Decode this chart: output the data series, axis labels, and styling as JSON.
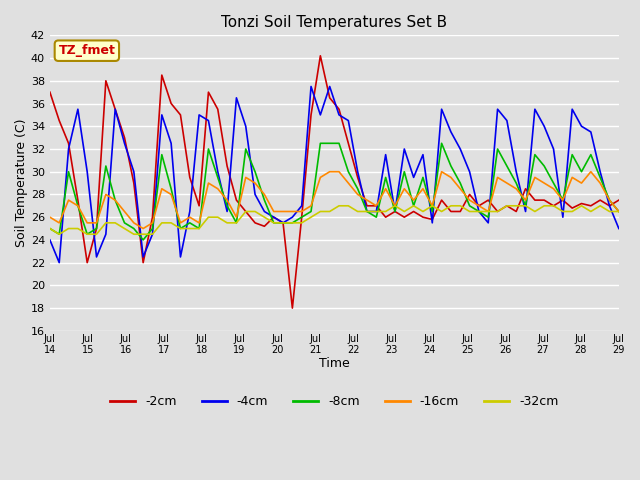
{
  "title": "Tonzi Soil Temperatures Set B",
  "xlabel": "Time",
  "ylabel": "Soil Temperature (C)",
  "annotation": "TZ_fmet",
  "ylim": [
    16,
    42
  ],
  "yticks": [
    16,
    18,
    20,
    22,
    24,
    26,
    28,
    30,
    32,
    34,
    36,
    38,
    40,
    42
  ],
  "xtick_labels": [
    "Jul 14",
    "Jul 15",
    "Jul 16",
    "Jul 17",
    "Jul 18",
    "Jul 19",
    "Jul 20",
    "Jul 21",
    "Jul 22",
    "Jul 23",
    "Jul 24",
    "Jul 25",
    "Jul 26",
    "Jul 27",
    "Jul 28",
    "Jul 29"
  ],
  "background_color": "#e0e0e0",
  "plot_bg_color": "#e0e0e0",
  "grid_color": "#ffffff",
  "series_colors": [
    "#cc0000",
    "#0000ee",
    "#00bb00",
    "#ff8800",
    "#cccc00"
  ],
  "series_labels": [
    "-2cm",
    "-4cm",
    "-8cm",
    "-16cm",
    "-32cm"
  ],
  "series_keys": [
    "2cm",
    "4cm",
    "8cm",
    "16cm",
    "32cm"
  ],
  "data": {
    "2cm": [
      37.0,
      34.5,
      32.5,
      27.5,
      22.0,
      25.0,
      38.0,
      35.5,
      33.0,
      29.0,
      22.0,
      26.0,
      38.5,
      36.0,
      35.0,
      29.5,
      27.0,
      37.0,
      35.5,
      30.5,
      27.5,
      26.5,
      25.5,
      25.2,
      26.0,
      25.5,
      18.0,
      26.0,
      35.0,
      40.2,
      36.5,
      35.5,
      32.5,
      29.5,
      27.0,
      27.0,
      26.0,
      26.5,
      26.0,
      26.5,
      26.0,
      25.8,
      27.5,
      26.5,
      26.5,
      28.0,
      27.0,
      27.5,
      26.5,
      27.0,
      26.5,
      28.5,
      27.5,
      27.5,
      27.0,
      27.5,
      26.8,
      27.2,
      27.0,
      27.5,
      27.0,
      27.5
    ],
    "4cm": [
      24.0,
      22.0,
      32.0,
      35.5,
      30.0,
      22.5,
      24.5,
      35.5,
      32.5,
      30.0,
      22.5,
      24.5,
      35.0,
      32.5,
      22.5,
      26.5,
      35.0,
      34.5,
      30.0,
      26.5,
      36.5,
      34.0,
      28.0,
      26.5,
      26.0,
      25.5,
      26.0,
      27.0,
      37.5,
      35.0,
      37.5,
      35.0,
      34.5,
      30.0,
      26.5,
      26.5,
      31.5,
      26.5,
      32.0,
      29.5,
      31.5,
      25.5,
      35.5,
      33.5,
      32.0,
      30.0,
      26.5,
      25.5,
      35.5,
      34.5,
      30.0,
      26.5,
      35.5,
      34.0,
      32.0,
      26.0,
      35.5,
      34.0,
      33.5,
      30.0,
      27.0,
      25.0
    ],
    "8cm": [
      25.0,
      24.5,
      30.0,
      27.0,
      24.5,
      25.0,
      30.5,
      27.5,
      25.5,
      25.0,
      24.0,
      25.0,
      31.5,
      28.5,
      25.0,
      25.5,
      25.0,
      32.0,
      29.5,
      27.0,
      25.5,
      32.0,
      30.0,
      27.5,
      25.5,
      25.5,
      25.5,
      26.0,
      26.5,
      32.5,
      32.5,
      32.5,
      30.0,
      28.5,
      26.5,
      26.0,
      29.5,
      26.5,
      30.0,
      27.0,
      29.5,
      26.5,
      32.5,
      30.5,
      29.0,
      27.0,
      26.5,
      26.0,
      32.0,
      30.5,
      29.0,
      27.0,
      31.5,
      30.5,
      29.0,
      27.5,
      31.5,
      30.0,
      31.5,
      29.5,
      27.5,
      26.5
    ],
    "16cm": [
      26.0,
      25.5,
      27.5,
      27.0,
      25.5,
      25.5,
      28.0,
      27.5,
      26.5,
      25.5,
      25.0,
      25.5,
      28.5,
      28.0,
      25.5,
      26.0,
      25.5,
      29.0,
      28.5,
      27.5,
      26.0,
      29.5,
      29.0,
      28.0,
      26.5,
      26.5,
      26.5,
      26.5,
      27.0,
      29.5,
      30.0,
      30.0,
      29.0,
      28.0,
      27.5,
      27.0,
      28.5,
      27.0,
      28.5,
      27.5,
      28.5,
      27.0,
      30.0,
      29.5,
      28.5,
      27.5,
      27.0,
      26.5,
      29.5,
      29.0,
      28.5,
      27.5,
      29.5,
      29.0,
      28.5,
      27.5,
      29.5,
      29.0,
      30.0,
      29.0,
      27.5,
      26.5
    ],
    "32cm": [
      25.0,
      24.5,
      25.0,
      25.0,
      24.5,
      24.5,
      25.5,
      25.5,
      25.0,
      24.5,
      24.5,
      24.5,
      25.5,
      25.5,
      25.0,
      25.0,
      25.0,
      26.0,
      26.0,
      25.5,
      25.5,
      26.5,
      26.5,
      26.0,
      25.5,
      25.5,
      25.5,
      25.5,
      26.0,
      26.5,
      26.5,
      27.0,
      27.0,
      26.5,
      26.5,
      26.5,
      26.5,
      27.0,
      26.5,
      27.0,
      26.5,
      27.0,
      26.5,
      27.0,
      27.0,
      26.5,
      26.5,
      26.5,
      26.5,
      27.0,
      27.0,
      27.0,
      26.5,
      27.0,
      27.0,
      26.5,
      26.5,
      27.0,
      26.5,
      27.0,
      26.5,
      26.5
    ]
  }
}
